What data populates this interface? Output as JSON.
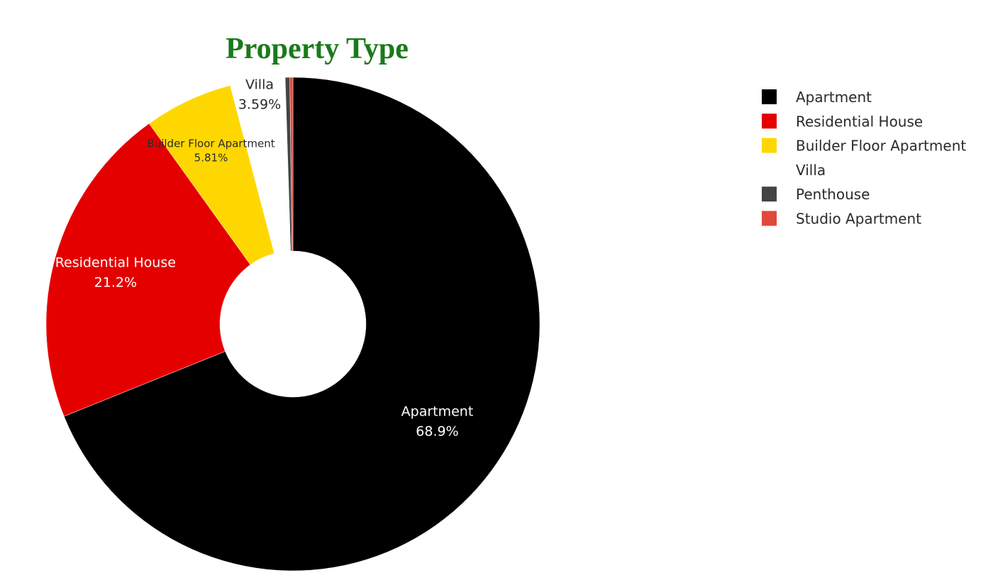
{
  "chart_data": {
    "type": "pie",
    "title": "Property Type",
    "hole": true,
    "labels": [
      "Apartment",
      "Residential House",
      "Builder Floor Apartment",
      "Villa",
      "Penthouse",
      "Studio Apartment"
    ],
    "values": [
      68.9,
      21.2,
      5.81,
      3.59,
      0.3,
      0.2
    ],
    "text": [
      "68.9%",
      "21.2%",
      "5.81%",
      "3.59%",
      "",
      ""
    ],
    "colors": [
      "#000000",
      "#e50000",
      "#ffd700",
      "#ffffff",
      "#444444",
      "#e04a3a"
    ],
    "label_colors": [
      "#ffffff",
      "#ffffff",
      "#2a2a2a",
      "#2a2a2a",
      "#2a2a2a",
      "#2a2a2a"
    ],
    "legend_position": "top-right",
    "title_color": "#1a7a1a"
  }
}
